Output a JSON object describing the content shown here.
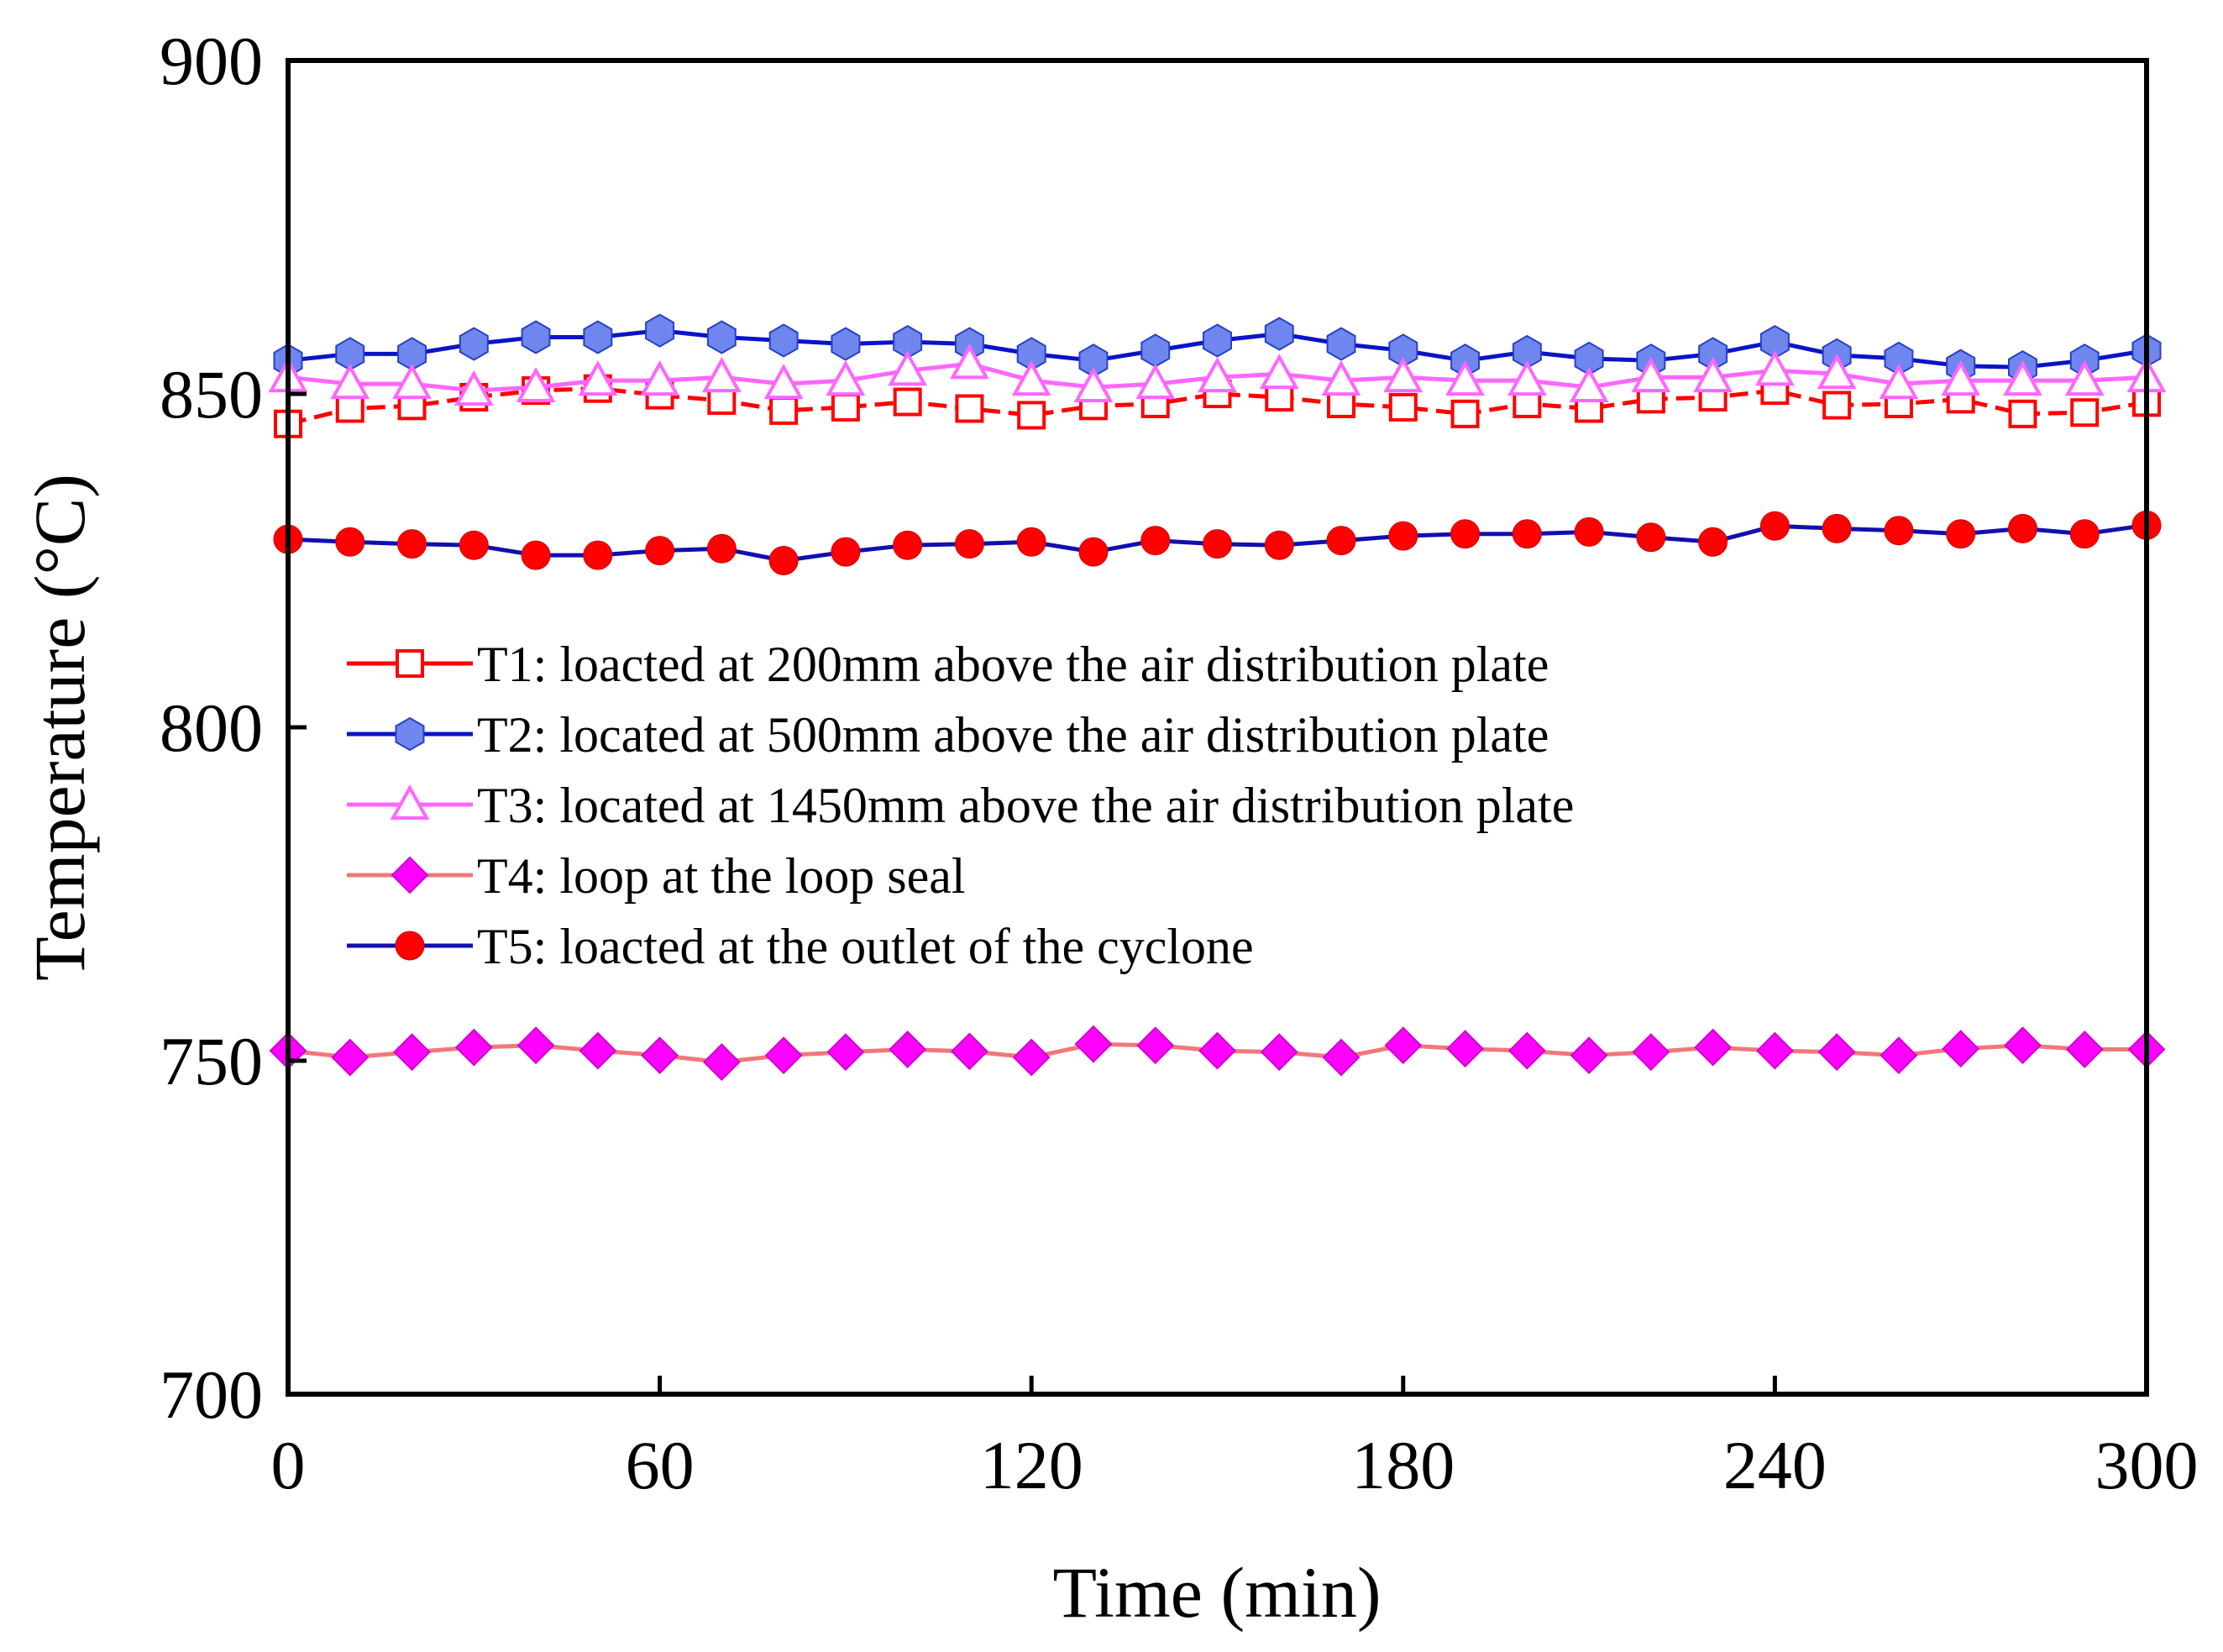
{
  "chart_data": {
    "type": "line",
    "xlabel": "Time (min)",
    "ylabel": "Temperature (°C)",
    "xlim": [
      0,
      300
    ],
    "ylim": [
      700,
      900
    ],
    "xticks": [
      0,
      60,
      120,
      180,
      240,
      300
    ],
    "yticks": [
      700,
      750,
      800,
      850,
      900
    ],
    "grid": false,
    "legend_position": "center-left",
    "x": [
      0,
      10,
      20,
      30,
      40,
      50,
      60,
      70,
      80,
      90,
      100,
      110,
      120,
      130,
      140,
      150,
      160,
      170,
      180,
      190,
      200,
      210,
      220,
      230,
      240,
      250,
      260,
      270,
      280,
      290,
      300
    ],
    "series": [
      {
        "name": "T1: loacted at 200mm above the air distribution plate",
        "line_color": "#ff0000",
        "marker": "square-open",
        "marker_color": "#ff0000",
        "dashed": true,
        "values": [
          845.5,
          847.8,
          848.2,
          849.5,
          850.5,
          850.8,
          849.8,
          849.0,
          847.5,
          848.0,
          848.8,
          847.8,
          846.8,
          848.2,
          848.5,
          850.0,
          849.5,
          848.5,
          848.0,
          847.0,
          848.5,
          847.8,
          849.2,
          849.5,
          850.5,
          848.3,
          848.5,
          849.2,
          847.0,
          847.2,
          848.7
        ]
      },
      {
        "name": "T2: located at 500mm above the air distribution plate",
        "line_color": "#0a14c8",
        "marker": "hexagon",
        "marker_color": "#6f86ee",
        "dashed": false,
        "values": [
          855.0,
          856.0,
          856.0,
          857.5,
          858.5,
          858.5,
          859.5,
          858.5,
          858.0,
          857.5,
          857.8,
          857.5,
          856.0,
          855.0,
          856.5,
          858.0,
          859.0,
          857.5,
          856.5,
          855.0,
          856.3,
          855.3,
          855.0,
          856.0,
          857.8,
          855.8,
          855.3,
          854.2,
          854.0,
          855.0,
          856.5
        ]
      },
      {
        "name": "T3: located at 1450mm above the air distribution plate",
        "line_color": "#ff66ff",
        "marker": "triangle-open",
        "marker_color": "#ff66ff",
        "dashed": false,
        "values": [
          852.5,
          851.5,
          851.5,
          850.5,
          851.0,
          852.0,
          852.0,
          852.5,
          851.5,
          852.0,
          853.5,
          854.5,
          852.0,
          851.0,
          851.5,
          852.5,
          853.0,
          852.0,
          852.5,
          852.0,
          852.0,
          851.0,
          852.5,
          852.5,
          853.5,
          853.0,
          851.5,
          852.0,
          852.0,
          852.0,
          852.5
        ]
      },
      {
        "name": "T4: loop at the loop seal",
        "line_color": "#f07878",
        "marker": "diamond",
        "marker_color": "#ff00ff",
        "dashed": false,
        "values": [
          751.5,
          750.5,
          751.3,
          752.0,
          752.3,
          751.5,
          750.8,
          749.8,
          750.8,
          751.3,
          751.7,
          751.4,
          750.5,
          752.5,
          752.3,
          751.5,
          751.3,
          750.5,
          752.3,
          751.8,
          751.5,
          750.8,
          751.3,
          752.0,
          751.5,
          751.3,
          750.8,
          751.8,
          752.3,
          751.7,
          751.7
        ]
      },
      {
        "name": "T5: loacted at the outlet of the cyclone",
        "line_color": "#1010b0",
        "marker": "circle",
        "marker_color": "#ff0000",
        "dashed": false,
        "values": [
          828.2,
          827.8,
          827.5,
          827.3,
          825.8,
          825.8,
          826.5,
          826.8,
          825.0,
          826.3,
          827.3,
          827.5,
          827.8,
          826.3,
          828.0,
          827.5,
          827.3,
          828.0,
          828.7,
          829.0,
          829.0,
          829.3,
          828.5,
          827.8,
          830.2,
          829.8,
          829.5,
          829.0,
          829.8,
          829.0,
          830.3
        ]
      }
    ]
  }
}
